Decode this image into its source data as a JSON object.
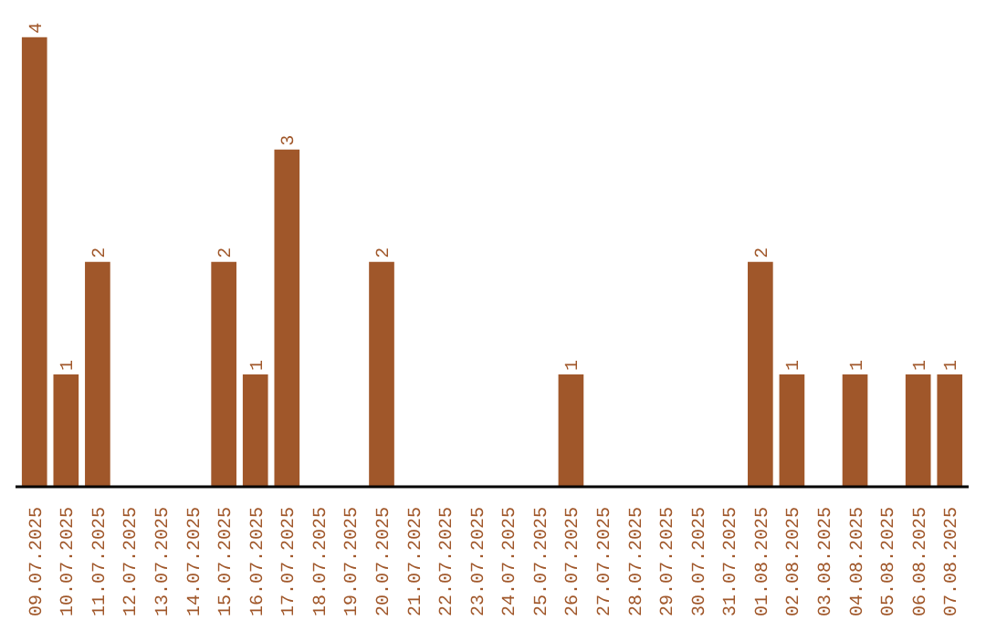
{
  "chart_data": {
    "type": "bar",
    "categories": [
      "09.07.2025",
      "10.07.2025",
      "11.07.2025",
      "12.07.2025",
      "13.07.2025",
      "14.07.2025",
      "15.07.2025",
      "16.07.2025",
      "17.07.2025",
      "18.07.2025",
      "19.07.2025",
      "20.07.2025",
      "21.07.2025",
      "22.07.2025",
      "23.07.2025",
      "24.07.2025",
      "25.07.2025",
      "26.07.2025",
      "27.07.2025",
      "28.07.2025",
      "29.07.2025",
      "30.07.2025",
      "31.07.2025",
      "01.08.2025",
      "02.08.2025",
      "03.08.2025",
      "04.08.2025",
      "05.08.2025",
      "06.08.2025",
      "07.08.2025"
    ],
    "values": [
      4,
      1,
      2,
      0,
      0,
      0,
      2,
      1,
      3,
      0,
      0,
      2,
      0,
      0,
      0,
      0,
      0,
      1,
      0,
      0,
      0,
      0,
      0,
      2,
      1,
      0,
      1,
      0,
      1,
      1
    ],
    "value_labels": [
      "4",
      "1",
      "2",
      null,
      null,
      null,
      "2",
      "1",
      "3",
      null,
      null,
      "2",
      null,
      null,
      null,
      null,
      null,
      "1",
      null,
      null,
      null,
      null,
      null,
      "2",
      "1",
      null,
      "1",
      null,
      "1",
      "1"
    ],
    "color": "#a0572a",
    "grid": false
  }
}
